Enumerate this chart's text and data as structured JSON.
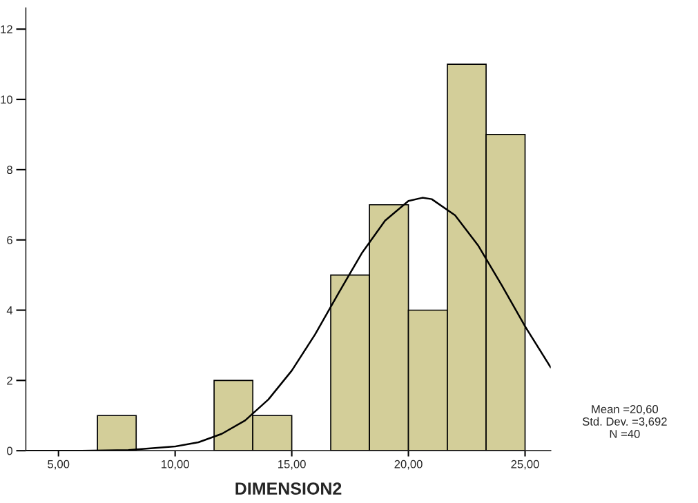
{
  "chart_data": {
    "type": "histogram",
    "xlabel": "DIMENSION2",
    "bins": [
      6.67,
      8.33,
      10,
      11.67,
      13.33,
      15,
      16.67,
      18.33,
      20,
      21.67,
      23.33,
      25
    ],
    "values": [
      1,
      0,
      0,
      2,
      1,
      0,
      5,
      7,
      4,
      11,
      9
    ],
    "color": "#d3ce99",
    "series": [
      {
        "type": "line",
        "color": "#000000",
        "x": [
          3.6,
          4,
          6,
          8,
          10,
          11,
          12,
          13,
          14,
          15,
          16,
          17,
          18,
          19,
          20,
          20.6,
          21,
          22,
          23,
          24,
          25,
          26.1
        ],
        "values": [
          0,
          0,
          0,
          0.02,
          0.12,
          0.24,
          0.48,
          0.86,
          1.46,
          2.28,
          3.31,
          4.48,
          5.62,
          6.55,
          7.11,
          7.2,
          7.16,
          6.7,
          5.83,
          4.71,
          3.54,
          2.37
        ]
      }
    ],
    "xlim": [
      3.6,
      26.1
    ],
    "xticks": [
      {
        "value": 5,
        "label": "5,00"
      },
      {
        "value": 10,
        "label": "10,00"
      },
      {
        "value": 15,
        "label": "15,00"
      },
      {
        "value": 20,
        "label": "20,00"
      },
      {
        "value": 25,
        "label": "25,00"
      }
    ],
    "ylim": [
      0,
      12.6
    ],
    "yticks": [
      0,
      2,
      4,
      6,
      8,
      10,
      12
    ],
    "grid": false,
    "annotations": [
      "Mean =20,60\nStd. Dev. =3,692\nN =40"
    ]
  }
}
